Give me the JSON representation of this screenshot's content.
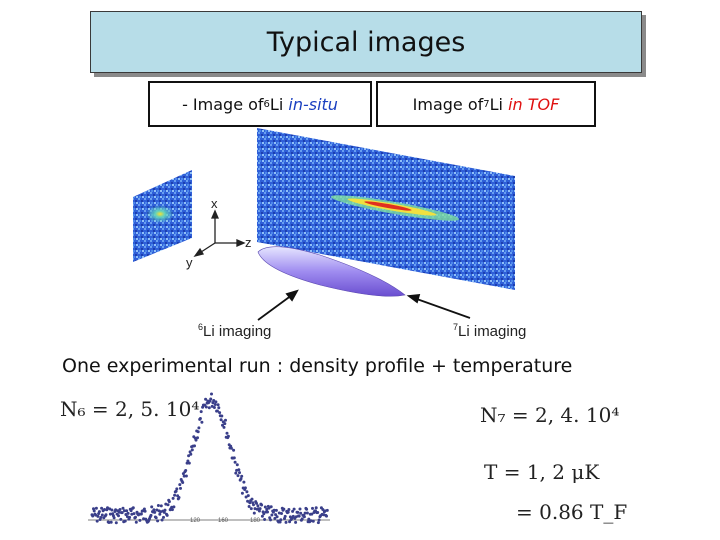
{
  "title": "Typical images",
  "label_left": {
    "prefix": "- Image of ",
    "isotope_sup": "6",
    "element": "Li ",
    "mode": "in-situ"
  },
  "label_right": {
    "prefix": "Image of ",
    "isotope_sup": "7",
    "element": "Li ",
    "mode": "in TOF"
  },
  "axes": {
    "x": "x",
    "y": "y",
    "z": "z"
  },
  "imaging_left": {
    "sup": "6",
    "text": "Li imaging"
  },
  "imaging_right": {
    "sup": "7",
    "text": "Li imaging"
  },
  "subtitle": "One experimental run : density profile + temperature",
  "eq_n6": "N₆ = 2, 5. 10⁴",
  "eq_n7": "N₇ = 2, 4. 10⁴",
  "eq_t": "T = 1, 2 μK",
  "eq_tf": "= 0.86 T_F",
  "plot_ticks": [
    "120",
    "160",
    "180"
  ],
  "colors": {
    "title_bg": "#b7dde8",
    "accent_red": "#e01010",
    "accent_blue": "#1a3fc0",
    "points": "#3a3f8a"
  }
}
